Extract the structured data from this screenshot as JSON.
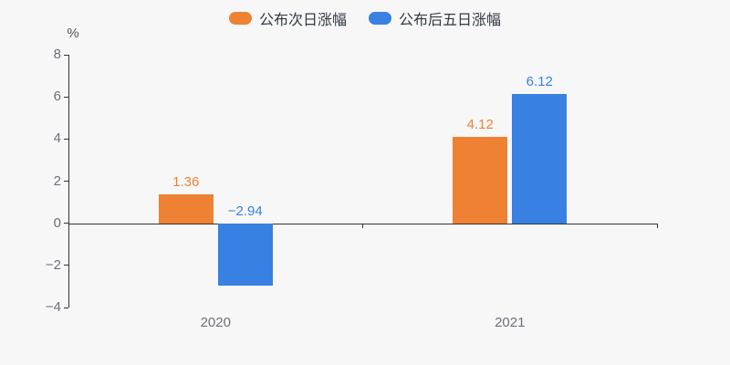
{
  "legend": {
    "items": [
      {
        "label": "公布次日涨幅"
      },
      {
        "label": "公布后五日涨幅"
      }
    ]
  },
  "axes": {
    "y_unit": "%",
    "yticks": [
      "8",
      "6",
      "4",
      "2",
      "0",
      "−2",
      "−4"
    ]
  },
  "chart_data": {
    "type": "bar",
    "categories": [
      "2020",
      "2021"
    ],
    "series": [
      {
        "key": "next-day-change",
        "name": "公布次日涨幅",
        "color": "#ee8133",
        "values": [
          1.36,
          4.12
        ],
        "value_labels": [
          "1.36",
          "4.12"
        ]
      },
      {
        "key": "five-day-change",
        "name": "公布后五日涨幅",
        "color": "#3880e2",
        "values": [
          -2.94,
          6.12
        ],
        "value_labels": [
          "−2.94",
          "6.12"
        ]
      }
    ],
    "title": "",
    "xlabel": "",
    "ylabel": "%",
    "ylim": [
      -4,
      8
    ],
    "ytick_step": 2,
    "grid": false,
    "legend_position": "top",
    "value_labels_shown": true
  },
  "colors": {
    "background": "#f7f7f8",
    "axis_line": "#333333",
    "tick_text": "#6e7079",
    "unit_text": "#54575e",
    "legend_text": "#333a45",
    "series_orange": "#ee8133",
    "series_blue": "#3880e2"
  }
}
